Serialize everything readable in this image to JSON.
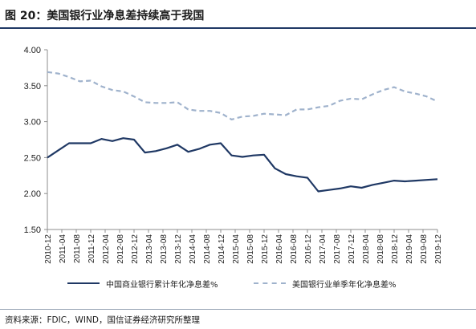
{
  "figure": {
    "title": "图 20：美国银行业净息差持续高于我国",
    "source": "资料来源：FDIC，WIND，国信证券经济研究所整理"
  },
  "colors": {
    "china_series": "#1f3864",
    "us_series": "#9fb2cc",
    "axis": "#8c8c8c",
    "header_rule": "#1f3864"
  },
  "chart_data": {
    "type": "line",
    "xlabel": "",
    "ylabel": "",
    "ylim": [
      1.5,
      4.0
    ],
    "yticks": [
      "1.50",
      "2.00",
      "2.50",
      "3.00",
      "3.50",
      "4.00"
    ],
    "grid": false,
    "legend_position": "bottom",
    "categories": [
      "2010-12",
      "2011-04",
      "2011-08",
      "2011-12",
      "2012-04",
      "2012-08",
      "2012-12",
      "2013-04",
      "2013-08",
      "2013-12",
      "2014-04",
      "2014-08",
      "2014-12",
      "2015-04",
      "2015-08",
      "2015-12",
      "2016-04",
      "2016-08",
      "2016-12",
      "2017-04",
      "2017-08",
      "2017-12",
      "2018-04",
      "2018-08",
      "2018-12",
      "2019-04",
      "2019-08",
      "2019-12"
    ],
    "series": [
      {
        "name": "中国商业银行累计年化净息差%",
        "style": "solid",
        "x": [
          "2010-12",
          "2011-03",
          "2011-06",
          "2011-09",
          "2011-12",
          "2012-03",
          "2012-06",
          "2012-09",
          "2012-12",
          "2013-03",
          "2013-06",
          "2013-09",
          "2013-12",
          "2014-03",
          "2014-06",
          "2014-09",
          "2014-12",
          "2015-03",
          "2015-06",
          "2015-09",
          "2015-12",
          "2016-03",
          "2016-06",
          "2016-09",
          "2016-12",
          "2017-03",
          "2017-06",
          "2017-09",
          "2017-12",
          "2018-03",
          "2018-06",
          "2018-09",
          "2018-12",
          "2019-03",
          "2019-06",
          "2019-09",
          "2019-12"
        ],
        "values": [
          2.5,
          2.6,
          2.7,
          2.7,
          2.7,
          2.76,
          2.73,
          2.77,
          2.75,
          2.57,
          2.59,
          2.63,
          2.68,
          2.58,
          2.62,
          2.68,
          2.7,
          2.53,
          2.51,
          2.53,
          2.54,
          2.35,
          2.27,
          2.24,
          2.22,
          2.03,
          2.05,
          2.07,
          2.1,
          2.08,
          2.12,
          2.15,
          2.18,
          2.17,
          2.18,
          2.19,
          2.2
        ]
      },
      {
        "name": "美国银行业单季年化净息差%",
        "style": "dashed",
        "x": [
          "2010-12",
          "2011-03",
          "2011-06",
          "2011-09",
          "2011-12",
          "2012-03",
          "2012-06",
          "2012-09",
          "2012-12",
          "2013-03",
          "2013-06",
          "2013-09",
          "2013-12",
          "2014-03",
          "2014-06",
          "2014-09",
          "2014-12",
          "2015-03",
          "2015-06",
          "2015-09",
          "2015-12",
          "2016-03",
          "2016-06",
          "2016-09",
          "2016-12",
          "2017-03",
          "2017-06",
          "2017-09",
          "2017-12",
          "2018-03",
          "2018-06",
          "2018-09",
          "2018-12",
          "2019-03",
          "2019-06",
          "2019-09",
          "2019-12"
        ],
        "values": [
          3.69,
          3.67,
          3.62,
          3.56,
          3.57,
          3.49,
          3.44,
          3.42,
          3.35,
          3.27,
          3.26,
          3.26,
          3.27,
          3.17,
          3.15,
          3.15,
          3.12,
          3.03,
          3.07,
          3.08,
          3.11,
          3.1,
          3.09,
          3.17,
          3.17,
          3.2,
          3.22,
          3.29,
          3.32,
          3.31,
          3.38,
          3.44,
          3.48,
          3.42,
          3.39,
          3.35,
          3.28
        ]
      }
    ]
  }
}
